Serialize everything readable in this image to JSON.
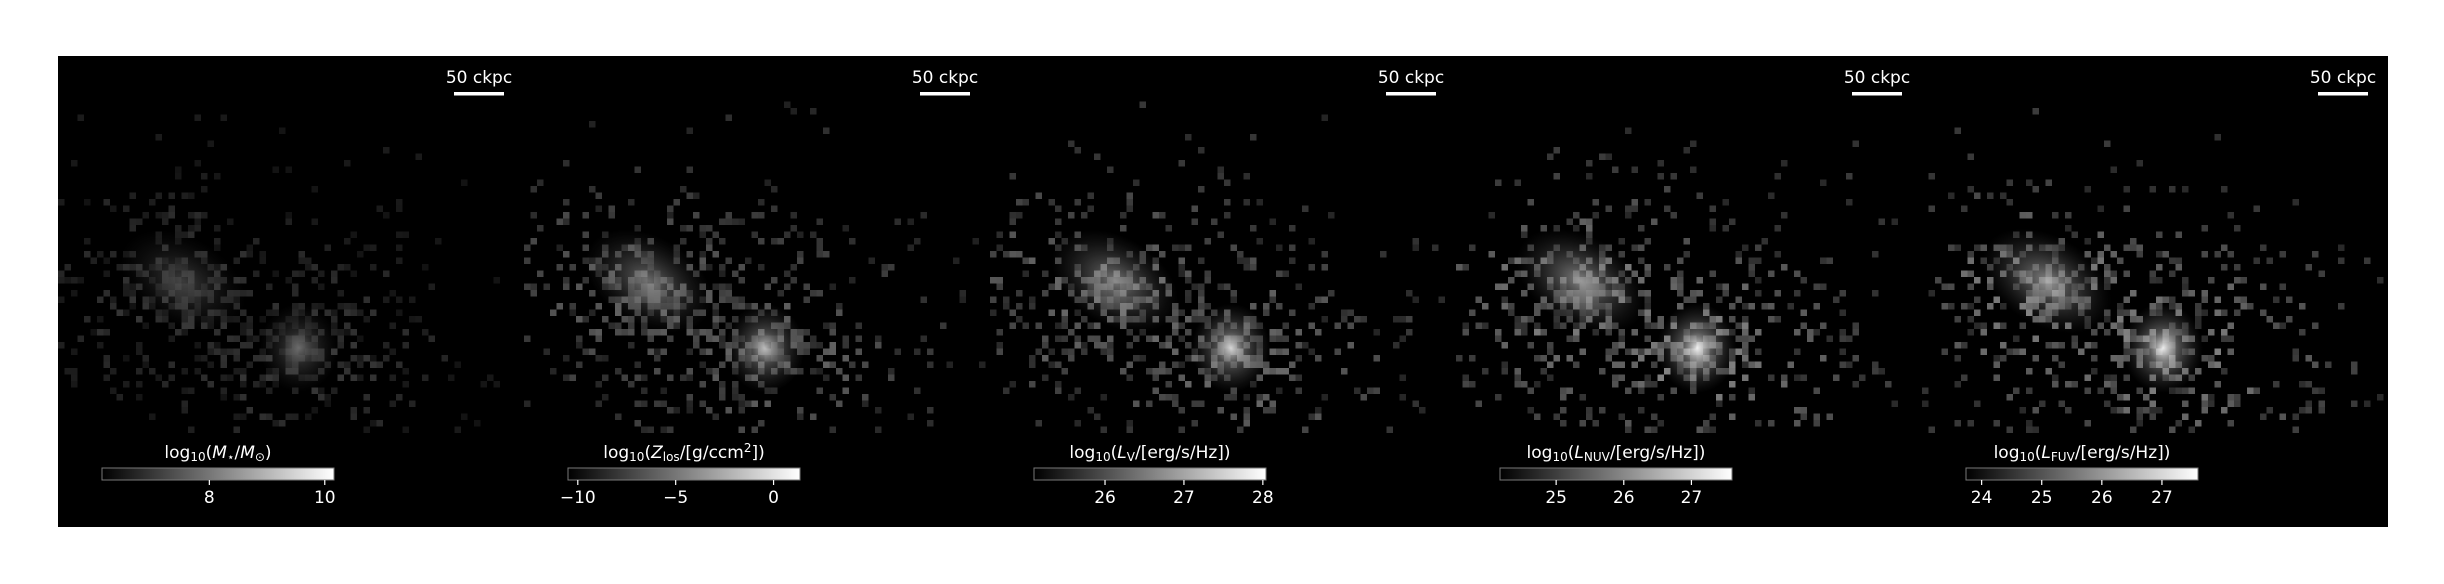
{
  "chart_data": [
    {
      "type": "heatmap",
      "scale_bar": "50 ckpc",
      "colorbar_label": [
        {
          "text": "log"
        },
        {
          "text": "10",
          "sub": true
        },
        {
          "text": "("
        },
        {
          "text": "M",
          "italic": true
        },
        {
          "text": "⋆",
          "sub": true
        },
        {
          "text": "/"
        },
        {
          "text": "M",
          "italic": true
        },
        {
          "text": "⊙",
          "sub": true
        },
        {
          "text": ")"
        }
      ],
      "clim": [
        6.14,
        10.16
      ],
      "cticks": [
        8,
        10
      ]
    },
    {
      "type": "heatmap",
      "scale_bar": "50 ckpc",
      "colorbar_label": [
        {
          "text": "log"
        },
        {
          "text": "10",
          "sub": true
        },
        {
          "text": "("
        },
        {
          "text": "Z",
          "italic": true
        },
        {
          "text": "los",
          "sub": true
        },
        {
          "text": "/[g/ccm"
        },
        {
          "text": "2",
          "sup": true
        },
        {
          "text": "])"
        }
      ],
      "clim": [
        -10.5,
        1.35
      ],
      "cticks": [
        {
          "value": -10,
          "label": "−10"
        },
        {
          "value": -5,
          "label": "−5"
        },
        0
      ]
    },
    {
      "type": "heatmap",
      "scale_bar": "50 ckpc",
      "colorbar_label": [
        {
          "text": "log"
        },
        {
          "text": "10",
          "sub": true
        },
        {
          "text": "("
        },
        {
          "text": "L",
          "italic": true
        },
        {
          "text": "V",
          "sub": true
        },
        {
          "text": "/[erg/s/Hz])"
        }
      ],
      "clim": [
        25.1,
        28.04
      ],
      "cticks": [
        26,
        27,
        28
      ]
    },
    {
      "type": "heatmap",
      "scale_bar": "50 ckpc",
      "colorbar_label": [
        {
          "text": "log"
        },
        {
          "text": "10",
          "sub": true
        },
        {
          "text": "("
        },
        {
          "text": "L",
          "italic": true
        },
        {
          "text": "NUV",
          "sub": true
        },
        {
          "text": "/[erg/s/Hz])"
        }
      ],
      "clim": [
        24.17,
        27.6
      ],
      "cticks": [
        25,
        26,
        27
      ]
    },
    {
      "type": "heatmap",
      "scale_bar": "50 ckpc",
      "colorbar_label": [
        {
          "text": "log"
        },
        {
          "text": "10",
          "sub": true
        },
        {
          "text": "("
        },
        {
          "text": "L",
          "italic": true
        },
        {
          "text": "FUV",
          "sub": true
        },
        {
          "text": "/[erg/s/Hz])"
        }
      ],
      "clim": [
        23.74,
        27.6
      ],
      "cticks": [
        24,
        25,
        26,
        27
      ]
    }
  ]
}
